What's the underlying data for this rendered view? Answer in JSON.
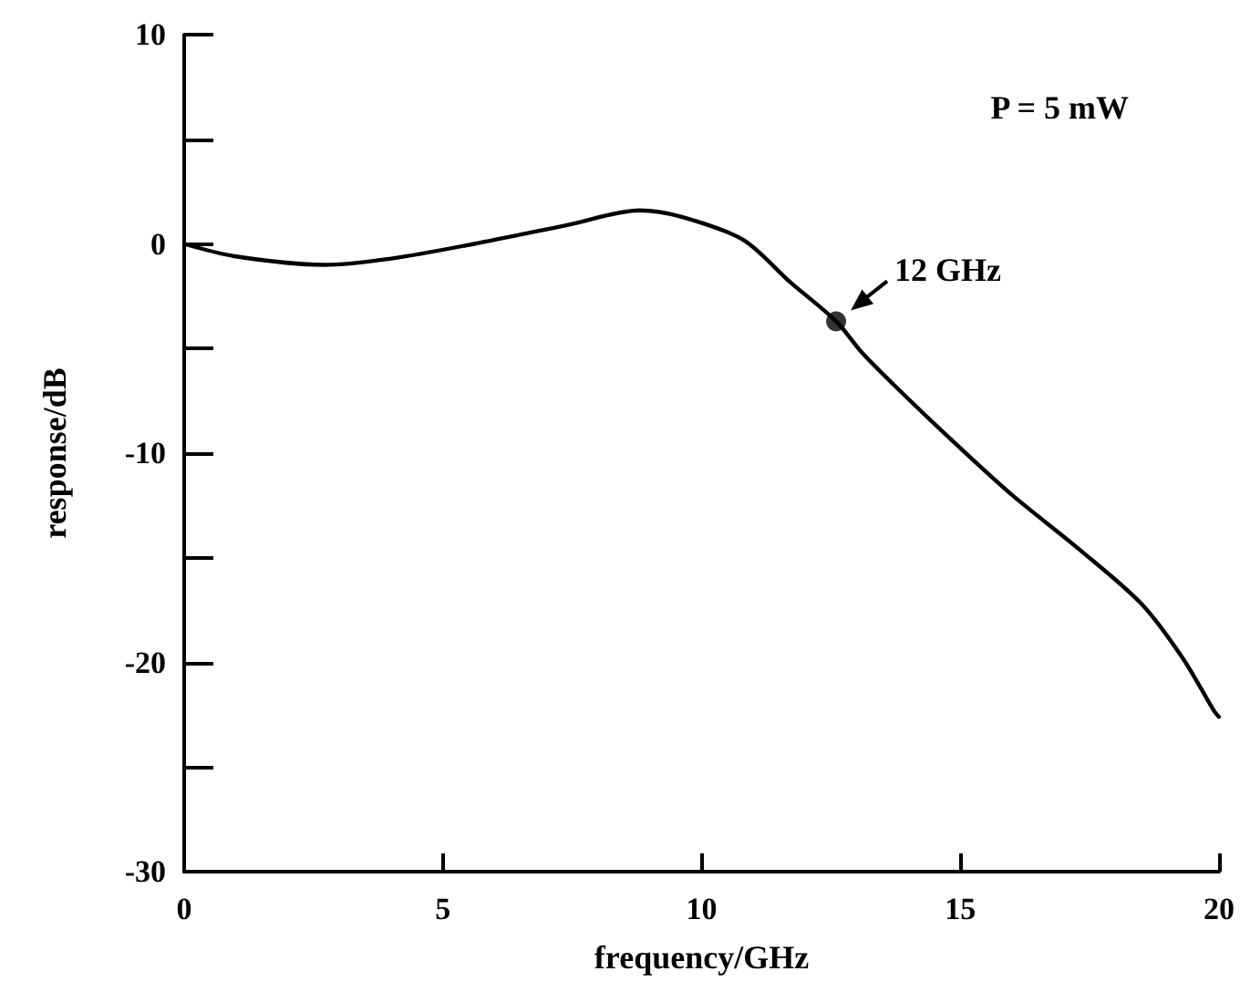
{
  "chart_data": {
    "type": "line",
    "xlabel": "frequency/GHz",
    "ylabel": "response/dB",
    "series": [
      {
        "color": "#000000",
        "marker": "none",
        "x": [
          0,
          1,
          2.7,
          4,
          5.6,
          7.4,
          8.8,
          9.6,
          10.8,
          11.7,
          12.6,
          13.1,
          13.7,
          14.8,
          16,
          17.3,
          18.5,
          19.3,
          19.9,
          20
        ],
        "values": [
          0,
          -0.6,
          -1,
          -0.7,
          0,
          0.9,
          1.6,
          1.3,
          0.2,
          -1.8,
          -3.7,
          -5.2,
          -6.7,
          -9.3,
          -12,
          -14.6,
          -17.2,
          -19.8,
          -22.3,
          -22.6
        ]
      },
      {
        "type": "scatter",
        "color": "#000000",
        "marker": "circle",
        "x": [
          12.6
        ],
        "values": [
          -3.7
        ]
      }
    ],
    "annotations": [
      "P = 5 mW",
      {
        "text": "12 GHz",
        "x": 12.6,
        "y": -3.7
      }
    ],
    "xlim": [
      0,
      20
    ],
    "xticks": [
      0,
      5,
      10,
      15,
      20
    ],
    "ylim": [
      -30,
      10
    ],
    "yticks": [
      -30,
      {
        "value": -25,
        "label": null
      },
      -20,
      {
        "value": -15,
        "label": null
      },
      -10,
      {
        "value": -5,
        "label": null
      },
      0,
      {
        "value": 5,
        "label": null
      },
      10
    ],
    "grid": false,
    "line_style": "solid"
  }
}
